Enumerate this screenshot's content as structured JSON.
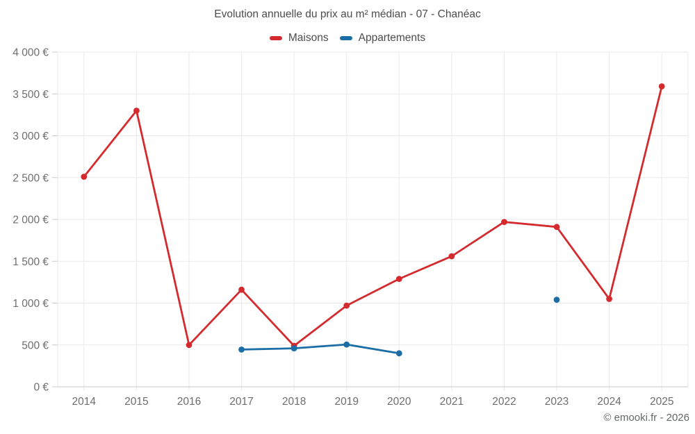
{
  "header": {
    "title": "Evolution annuelle du prix au m² médian - 07 - Chanéac"
  },
  "legend": {
    "items": [
      {
        "label": "Maisons",
        "color": "#d42a2e"
      },
      {
        "label": "Appartements",
        "color": "#1a6da5"
      }
    ]
  },
  "footer": {
    "attribution": "© emooki.fr - 2026"
  },
  "chart_data": {
    "type": "line",
    "title": "Evolution annuelle du prix au m² médian - 07 - Chanéac",
    "categories": [
      "2014",
      "2015",
      "2016",
      "2017",
      "2018",
      "2019",
      "2020",
      "2021",
      "2022",
      "2023",
      "2024",
      "2025"
    ],
    "series": [
      {
        "name": "Maisons",
        "color": "#d42a2e",
        "values": [
          2510,
          3300,
          500,
          1160,
          490,
          970,
          1290,
          1560,
          1970,
          1910,
          1050,
          3590
        ]
      },
      {
        "name": "Appartements",
        "color": "#1a6da5",
        "values": [
          null,
          null,
          null,
          445,
          460,
          505,
          400,
          null,
          null,
          1040,
          null,
          null
        ]
      }
    ],
    "xlabel": "",
    "ylabel": "",
    "ylim": [
      0,
      4000
    ],
    "ytick_step": 500,
    "ytick_labels": [
      "0 €",
      "500 €",
      "1 000 €",
      "1 500 €",
      "2 000 €",
      "2 500 €",
      "3 000 €",
      "3 500 €",
      "4 000 €"
    ],
    "grid": true,
    "legend_position": "top",
    "attribution": "© emooki.fr - 2026",
    "colors": {
      "grid": "#e9e9e9",
      "axis": "#c9c9c9",
      "tick_text": "#6e6e6e"
    }
  }
}
